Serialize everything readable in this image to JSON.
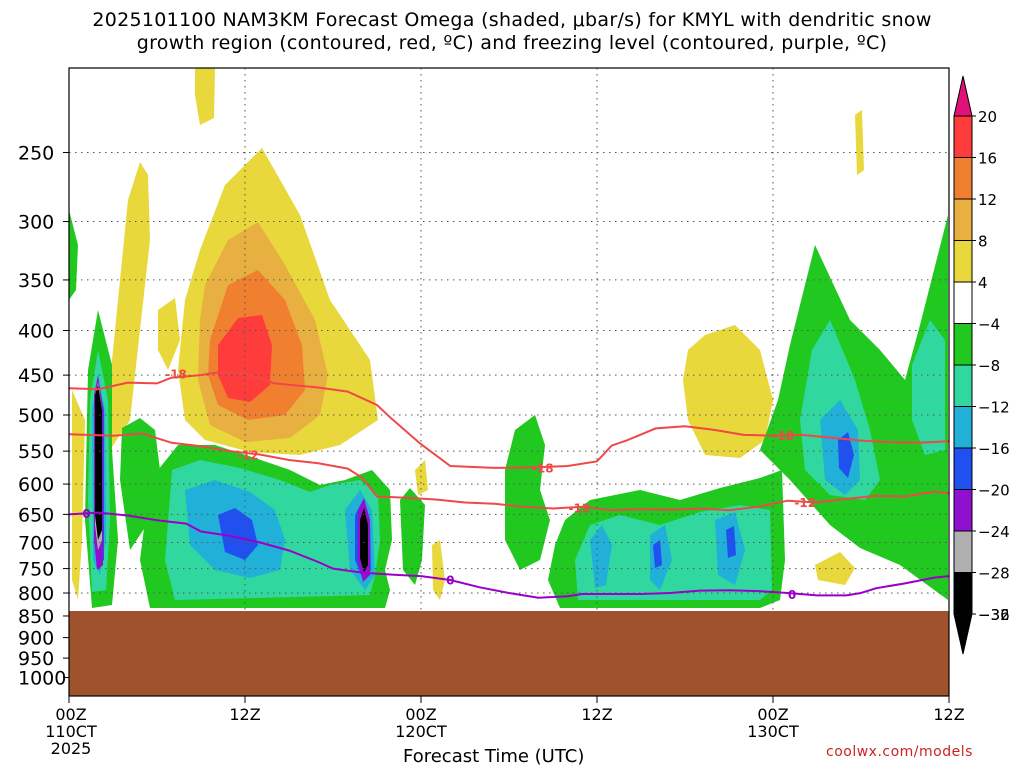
{
  "chart_data": {
    "type": "heatmap",
    "title_line1": "2025101100 NAM3KM Forecast Omega (shaded, μbar/s) for KMYL with dendritic snow",
    "title_line2": "growth region (contoured, red, ºC) and freezing level (contoured, purple, ºC)",
    "xlabel": "Forecast Time (UTC)",
    "x_range_hours": [
      0,
      60
    ],
    "x_ticks": [
      {
        "h": 0,
        "lines": [
          "00Z",
          "110CT",
          "2025"
        ]
      },
      {
        "h": 12,
        "lines": [
          "12Z"
        ]
      },
      {
        "h": 24,
        "lines": [
          "00Z",
          "120CT"
        ]
      },
      {
        "h": 36,
        "lines": [
          "12Z"
        ]
      },
      {
        "h": 48,
        "lines": [
          "00Z",
          "130CT"
        ]
      },
      {
        "h": 60,
        "lines": [
          "12Z"
        ]
      }
    ],
    "y_range_hpa": [
      1050,
      200
    ],
    "y_ticks": [
      250,
      300,
      350,
      400,
      450,
      500,
      550,
      600,
      650,
      700,
      750,
      800,
      850,
      900,
      950,
      1000
    ],
    "colorbar": {
      "labels": [
        "20",
        "16",
        "12",
        "8",
        "4",
        "−4",
        "−8",
        "−12",
        "−16",
        "−20",
        "−24",
        "−28",
        "−32",
        "−36"
      ],
      "colors": [
        "#ff3c3c",
        "#f08030",
        "#e8b040",
        "#e8d83c",
        "#ffffff",
        "#20c820",
        "#30d8a0",
        "#20b0d8",
        "#2050f0",
        "#9010d0",
        "#b0b0b0",
        "#000000"
      ],
      "top_color": "#e0127a",
      "bottom_color": "#000000"
    },
    "terrain_color": "#a0522d",
    "contours": {
      "dgz_m18_label": "-18",
      "dgz_m12_label": "-12",
      "freezing_label": "0",
      "dgz_color": "#f04848",
      "freezing_color": "#9a00c8",
      "dgz_m18": [
        [
          0,
          466
        ],
        [
          2,
          467
        ],
        [
          4,
          459
        ],
        [
          6,
          460
        ],
        [
          7,
          453
        ],
        [
          9,
          450
        ],
        [
          10,
          447
        ],
        [
          12,
          448
        ],
        [
          14,
          460
        ],
        [
          17,
          465
        ],
        [
          19,
          470
        ],
        [
          21,
          487
        ],
        [
          22,
          505
        ],
        [
          24,
          540
        ],
        [
          26,
          572
        ],
        [
          29,
          575
        ],
        [
          32,
          574
        ],
        [
          34,
          572
        ],
        [
          36,
          565
        ],
        [
          37,
          542
        ],
        [
          38,
          535
        ],
        [
          40,
          518
        ],
        [
          42,
          515
        ],
        [
          44,
          520
        ],
        [
          46,
          527
        ],
        [
          48,
          528
        ],
        [
          50,
          527
        ],
        [
          52,
          531
        ],
        [
          54,
          535
        ],
        [
          56,
          537
        ],
        [
          58,
          538
        ],
        [
          60,
          536
        ]
      ],
      "dgz_m12": [
        [
          0,
          526
        ],
        [
          3,
          528
        ],
        [
          5,
          525
        ],
        [
          7,
          538
        ],
        [
          9,
          543
        ],
        [
          11,
          550
        ],
        [
          13,
          555
        ],
        [
          15,
          563
        ],
        [
          17,
          568
        ],
        [
          19,
          576
        ],
        [
          20,
          590
        ],
        [
          21,
          620
        ],
        [
          23,
          622
        ],
        [
          25,
          625
        ],
        [
          27,
          630
        ],
        [
          29,
          632
        ],
        [
          31,
          637
        ],
        [
          33,
          640
        ],
        [
          35,
          637
        ],
        [
          37,
          643
        ],
        [
          39,
          641
        ],
        [
          41,
          642
        ],
        [
          43,
          640
        ],
        [
          45,
          643
        ],
        [
          47,
          637
        ],
        [
          49,
          627
        ],
        [
          51,
          630
        ],
        [
          53,
          624
        ],
        [
          55,
          619
        ],
        [
          57,
          620
        ],
        [
          59,
          612
        ],
        [
          60,
          615
        ]
      ],
      "freezing_0": [
        [
          0,
          650
        ],
        [
          2,
          647
        ],
        [
          4,
          652
        ],
        [
          6,
          660
        ],
        [
          8,
          666
        ],
        [
          9,
          680
        ],
        [
          11,
          688
        ],
        [
          13,
          700
        ],
        [
          15,
          715
        ],
        [
          17,
          737
        ],
        [
          18,
          750
        ],
        [
          20,
          758
        ],
        [
          22,
          762
        ],
        [
          24,
          765
        ],
        [
          26,
          773
        ],
        [
          28,
          788
        ],
        [
          30,
          800
        ],
        [
          32,
          810
        ],
        [
          34,
          807
        ],
        [
          35,
          802
        ],
        [
          37,
          802
        ],
        [
          39,
          802
        ],
        [
          41,
          800
        ],
        [
          43,
          795
        ],
        [
          45,
          794
        ],
        [
          47,
          796
        ],
        [
          49,
          800
        ],
        [
          51,
          805
        ],
        [
          53,
          805
        ],
        [
          54,
          800
        ],
        [
          55,
          790
        ],
        [
          57,
          780
        ],
        [
          59,
          768
        ],
        [
          60,
          765
        ]
      ]
    }
  },
  "credit": "coolwx.com/models"
}
